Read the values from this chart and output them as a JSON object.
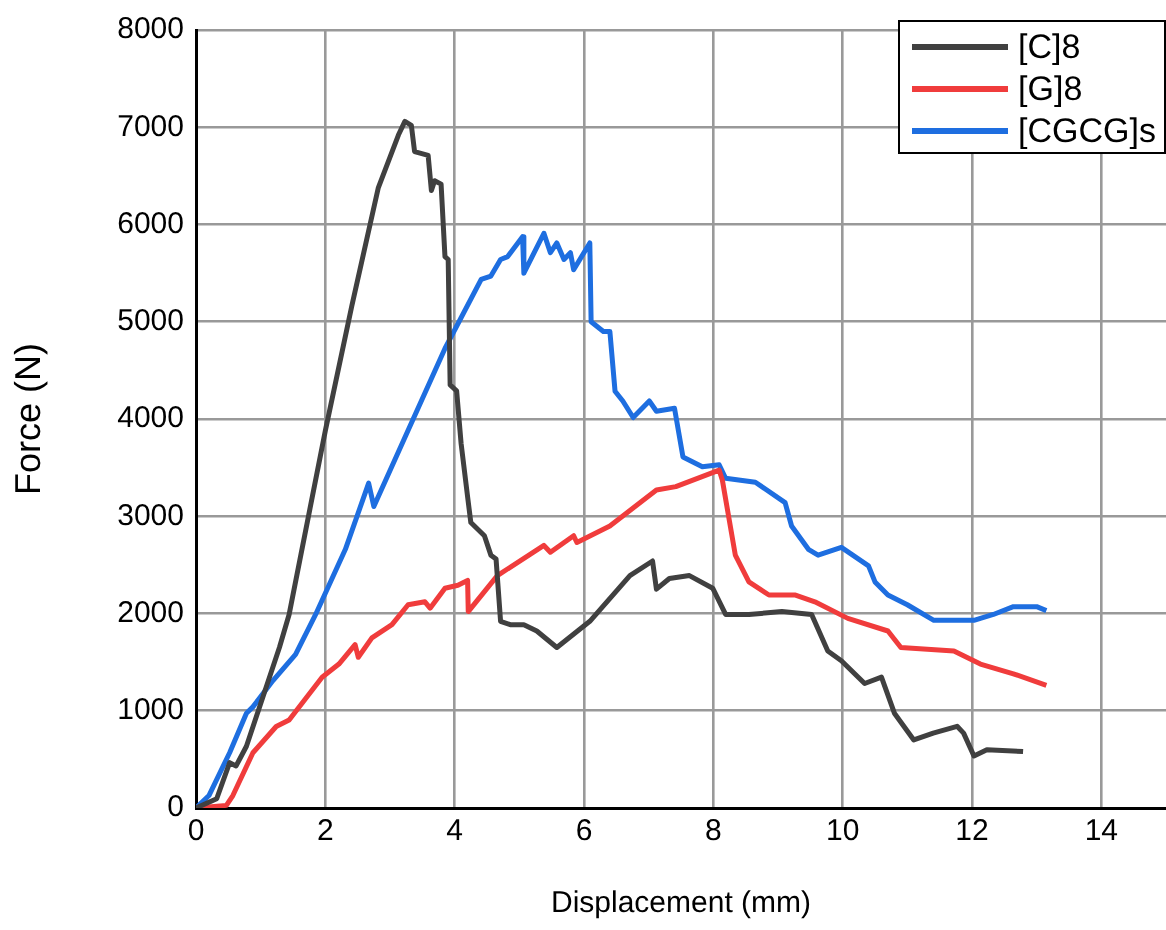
{
  "chart_data": {
    "type": "line",
    "xlabel": "Displacement (mm)",
    "ylabel": "Force (N)",
    "xlim": [
      0,
      15
    ],
    "xticks": [
      0,
      2,
      4,
      6,
      8,
      10,
      12,
      14
    ],
    "ylim": [
      0,
      8000
    ],
    "yticks": [
      0,
      1000,
      2000,
      3000,
      4000,
      5000,
      6000,
      7000,
      8000
    ],
    "grid": true,
    "legend": "top right",
    "marker": "none",
    "line_style": "solid",
    "series": [
      {
        "name": "[C]8",
        "color": "#404040",
        "x": [
          0,
          0.32,
          0.52,
          0.62,
          0.78,
          1.29,
          1.44,
          2.0,
          2.41,
          2.82,
          3.13,
          3.23,
          3.33,
          3.38,
          3.59,
          3.64,
          3.69,
          3.79,
          3.85,
          3.9,
          3.93,
          4.03,
          4.1,
          4.2,
          4.25,
          4.46,
          4.56,
          4.64,
          4.71,
          4.86,
          5.07,
          5.27,
          5.58,
          6.09,
          6.71,
          7.06,
          7.12,
          7.32,
          7.63,
          7.99,
          8.19,
          8.55,
          9.06,
          9.52,
          9.77,
          9.98,
          10.34,
          10.6,
          10.8,
          11.1,
          11.4,
          11.77,
          11.87,
          12.03,
          12.23,
          12.79
        ],
        "values": [
          0,
          95,
          466,
          433,
          635,
          1650,
          1990,
          3880,
          5165,
          6380,
          6920,
          7060,
          7020,
          6750,
          6710,
          6350,
          6450,
          6415,
          5670,
          5640,
          4350,
          4290,
          3745,
          3200,
          2935,
          2800,
          2600,
          2560,
          1920,
          1885,
          1885,
          1820,
          1650,
          1920,
          2390,
          2540,
          2250,
          2360,
          2390,
          2260,
          1990,
          1990,
          2020,
          1990,
          1615,
          1515,
          1280,
          1345,
          975,
          700,
          770,
          840,
          770,
          535,
          600,
          580
        ]
      },
      {
        "name": "[G]8",
        "color": "#f03c3c",
        "x": [
          0,
          0.47,
          0.57,
          0.88,
          1.24,
          1.44,
          1.95,
          2.21,
          2.46,
          2.51,
          2.72,
          3.03,
          3.28,
          3.54,
          3.62,
          3.85,
          4.05,
          4.2,
          4.21,
          4.66,
          5.38,
          5.48,
          5.84,
          5.89,
          6.4,
          7.12,
          7.42,
          8.09,
          8.14,
          8.34,
          8.55,
          8.86,
          9.27,
          9.57,
          10.08,
          10.7,
          10.9,
          11.72,
          12.13,
          12.64,
          13.15
        ],
        "values": [
          0,
          27,
          128,
          568,
          838,
          905,
          1345,
          1480,
          1680,
          1550,
          1750,
          1885,
          2090,
          2120,
          2055,
          2260,
          2290,
          2340,
          2020,
          2390,
          2700,
          2630,
          2800,
          2730,
          2900,
          3270,
          3305,
          3475,
          3370,
          2600,
          2325,
          2190,
          2190,
          2120,
          1950,
          1820,
          1650,
          1615,
          1480,
          1380,
          1260
        ]
      },
      {
        "name": "[CGCG]s",
        "color": "#1e6ee0",
        "x": [
          0,
          0.2,
          0.52,
          0.78,
          0.88,
          1.19,
          1.54,
          1.85,
          2.31,
          2.67,
          2.75,
          3.23,
          3.85,
          4.41,
          4.56,
          4.71,
          4.82,
          5.05,
          5.07,
          5.38,
          5.48,
          5.58,
          5.69,
          5.79,
          5.84,
          6.09,
          6.11,
          6.3,
          6.4,
          6.48,
          6.6,
          6.76,
          7.01,
          7.12,
          7.4,
          7.53,
          7.83,
          8.09,
          8.19,
          8.65,
          9.11,
          9.21,
          9.47,
          9.62,
          9.98,
          10.4,
          10.5,
          10.7,
          11.0,
          11.41,
          12.03,
          12.33,
          12.64,
          13.0,
          13.15
        ],
        "values": [
          0,
          128,
          568,
          975,
          1040,
          1310,
          1580,
          1990,
          2660,
          3340,
          3100,
          3810,
          4725,
          5435,
          5470,
          5640,
          5670,
          5875,
          5500,
          5910,
          5710,
          5810,
          5640,
          5710,
          5535,
          5810,
          5000,
          4900,
          4900,
          4285,
          4185,
          4015,
          4185,
          4080,
          4110,
          3610,
          3510,
          3530,
          3390,
          3350,
          3140,
          2900,
          2660,
          2600,
          2680,
          2490,
          2325,
          2190,
          2090,
          1930,
          1930,
          1990,
          2070,
          2070,
          2030
        ]
      }
    ]
  }
}
